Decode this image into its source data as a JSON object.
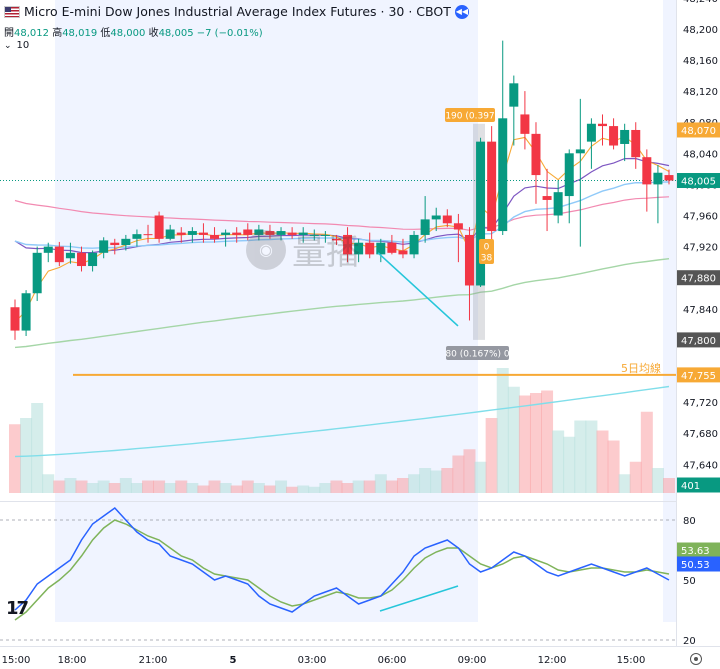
{
  "header": {
    "symbol": "Micro E-mini Dow Jones Industrial Average Index Futures · 30 · CBOT",
    "ohlc": {
      "open_label": "開",
      "open": "48,012",
      "high_label": "高",
      "high": "48,019",
      "low_label": "低",
      "low": "48,000",
      "close_label": "收",
      "close": "48,005",
      "change": "−7 (−0.01%)"
    },
    "ma_length": "10"
  },
  "watermark": "量播",
  "chart_data": {
    "type": "candlestick",
    "price_axis": {
      "ticks": [
        "48,240",
        "48,200",
        "48,160",
        "48,120",
        "48,080",
        "48,040",
        "48,000",
        "47,960",
        "47,920",
        "47,880",
        "47,840",
        "47,800",
        "47,760",
        "47,720",
        "47,680",
        "47,640"
      ],
      "range": [
        47620,
        48250
      ]
    },
    "indicator_axis": {
      "ticks": [
        "80",
        "50",
        "20"
      ]
    },
    "time_axis": {
      "labels": [
        "15:00",
        "18:00",
        "21:00",
        "5",
        "03:00",
        "06:00",
        "09:00",
        "12:00",
        "15:00"
      ]
    },
    "price_labels": [
      {
        "text": "48,070",
        "role": "high",
        "color": "#f7a935"
      },
      {
        "text": "48,005",
        "role": "last",
        "color": "#089981"
      },
      {
        "text": "47,880",
        "role": "marker",
        "color": "#555555"
      },
      {
        "text": "47,800",
        "role": "marker",
        "color": "#555555"
      },
      {
        "text": "47,755",
        "role": "ma-line",
        "color": "#f7a935"
      },
      {
        "text": "401",
        "role": "volume",
        "color": "#089981"
      }
    ],
    "indicator_labels": [
      {
        "text": "53.63",
        "color": "#7fb35a"
      },
      {
        "text": "50.53",
        "color": "#2962ff"
      }
    ],
    "annotations": {
      "ma5_label": "5日均線",
      "measure_top": "190 (0.397",
      "measure_bottom": "80 (0.167%) 0",
      "measure_mid": "0",
      "measure_mid2": "38"
    },
    "ma5_level": 47755,
    "candles": [
      [
        47842,
        47852,
        47800,
        47812
      ],
      [
        47812,
        47864,
        47805,
        47860
      ],
      [
        47860,
        47920,
        47850,
        47912
      ],
      [
        47912,
        47925,
        47900,
        47920
      ],
      [
        47920,
        47926,
        47895,
        47900
      ],
      [
        47905,
        47925,
        47898,
        47912
      ],
      [
        47912,
        47920,
        47888,
        47895
      ],
      [
        47895,
        47915,
        47888,
        47912
      ],
      [
        47912,
        47932,
        47905,
        47928
      ],
      [
        47925,
        47930,
        47910,
        47922
      ],
      [
        47922,
        47935,
        47915,
        47930
      ],
      [
        47930,
        47942,
        47920,
        47936
      ],
      [
        47936,
        47948,
        47925,
        47935
      ],
      [
        47960,
        47965,
        47925,
        47930
      ],
      [
        47930,
        47948,
        47928,
        47942
      ],
      [
        47938,
        47945,
        47925,
        47935
      ],
      [
        47935,
        47945,
        47925,
        47940
      ],
      [
        47938,
        47950,
        47925,
        47935
      ],
      [
        47935,
        47945,
        47925,
        47930
      ],
      [
        47935,
        47942,
        47920,
        47938
      ],
      [
        47938,
        47945,
        47925,
        47935
      ],
      [
        47942,
        47950,
        47928,
        47935
      ],
      [
        47935,
        47948,
        47928,
        47942
      ],
      [
        47940,
        47948,
        47930,
        47935
      ],
      [
        47935,
        47945,
        47928,
        47940
      ],
      [
        47938,
        47945,
        47930,
        47935
      ],
      [
        47935,
        47945,
        47925,
        47938
      ],
      [
        47935,
        47942,
        47928,
        47935
      ],
      [
        47935,
        47940,
        47925,
        47935
      ],
      [
        47930,
        47935,
        47922,
        47928
      ],
      [
        47935,
        47945,
        47900,
        47910
      ],
      [
        47910,
        47930,
        47900,
        47925
      ],
      [
        47925,
        47938,
        47905,
        47910
      ],
      [
        47910,
        47930,
        47900,
        47925
      ],
      [
        47925,
        47935,
        47910,
        47912
      ],
      [
        47915,
        47930,
        47905,
        47910
      ],
      [
        47910,
        47940,
        47905,
        47935
      ],
      [
        47935,
        47985,
        47925,
        47955
      ],
      [
        47955,
        47970,
        47940,
        47960
      ],
      [
        47960,
        47968,
        47945,
        47950
      ],
      [
        47950,
        47962,
        47900,
        47942
      ],
      [
        47935,
        47945,
        47825,
        47870
      ],
      [
        47870,
        48060,
        47868,
        48055
      ],
      [
        48055,
        48075,
        47920,
        47940
      ],
      [
        47940,
        48185,
        47935,
        48085
      ],
      [
        48100,
        48140,
        48050,
        48130
      ],
      [
        48090,
        48120,
        48045,
        48065
      ],
      [
        48065,
        48080,
        47975,
        48012
      ],
      [
        47985,
        48020,
        47940,
        47980
      ],
      [
        47960,
        48005,
        47950,
        47990
      ],
      [
        47985,
        48045,
        47950,
        48040
      ],
      [
        48040,
        48110,
        47920,
        48045
      ],
      [
        48055,
        48085,
        48020,
        48078
      ],
      [
        48078,
        48090,
        48050,
        48075
      ],
      [
        48075,
        48085,
        48045,
        48050
      ],
      [
        48052,
        48078,
        48030,
        48070
      ],
      [
        48070,
        48080,
        48020,
        48035
      ],
      [
        48035,
        48045,
        47965,
        48000
      ],
      [
        48000,
        48025,
        47950,
        48015
      ],
      [
        48012,
        48019,
        48000,
        48005
      ]
    ],
    "volume_ratios": [
      0.55,
      0.6,
      0.72,
      0.15,
      0.1,
      0.12,
      0.1,
      0.08,
      0.1,
      0.08,
      0.12,
      0.08,
      0.1,
      0.1,
      0.08,
      0.1,
      0.08,
      0.06,
      0.1,
      0.08,
      0.06,
      0.1,
      0.08,
      0.06,
      0.1,
      0.05,
      0.06,
      0.05,
      0.08,
      0.1,
      0.08,
      0.1,
      0.1,
      0.15,
      0.1,
      0.12,
      0.15,
      0.2,
      0.18,
      0.2,
      0.3,
      0.35,
      0.25,
      0.6,
      1.0,
      0.85,
      0.78,
      0.8,
      0.82,
      0.5,
      0.45,
      0.58,
      0.58,
      0.5,
      0.42,
      0.15,
      0.25,
      0.65,
      0.2,
      0.12
    ],
    "stoch_k": [
      35,
      40,
      48,
      52,
      56,
      60,
      70,
      78,
      82,
      86,
      80,
      74,
      70,
      68,
      62,
      60,
      58,
      54,
      50,
      52,
      50,
      48,
      42,
      38,
      36,
      34,
      38,
      42,
      44,
      46,
      42,
      38,
      40,
      42,
      48,
      54,
      62,
      66,
      68,
      70,
      66,
      58,
      54,
      56,
      60,
      64,
      62,
      58,
      54,
      52,
      54,
      56,
      58,
      56,
      54,
      52,
      54,
      56,
      53,
      50
    ],
    "stoch_d": [
      30,
      34,
      40,
      46,
      50,
      55,
      62,
      70,
      76,
      80,
      78,
      75,
      72,
      70,
      66,
      62,
      60,
      56,
      53,
      52,
      51,
      50,
      46,
      42,
      39,
      37,
      38,
      40,
      42,
      44,
      43,
      41,
      41,
      42,
      45,
      50,
      56,
      61,
      64,
      66,
      66,
      62,
      58,
      56,
      58,
      61,
      62,
      60,
      58,
      55,
      54,
      55,
      56,
      56,
      55,
      54,
      54,
      55,
      54,
      53
    ]
  }
}
